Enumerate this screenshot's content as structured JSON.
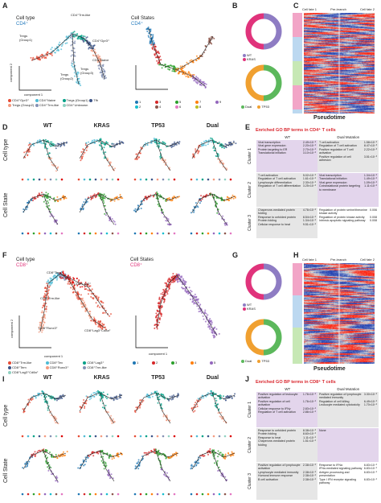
{
  "panels": {
    "A": {
      "letter": "A",
      "cell_type_label": "Cell type",
      "cd4_label": "CD4⁺",
      "cell_states_label": "Cell States",
      "cd4_label2": "CD4⁺",
      "annotations": [
        "CD4⁺Trm-like",
        "Tregs (Group1)",
        "CD4⁺Gpr3⁺",
        "CD4⁺Naive",
        "Tregs (Group2)",
        "Tregs (Group3)"
      ],
      "component1": "component 1",
      "component2": "component 2",
      "legend_type": [
        "CD4⁺Gpr3⁺",
        "CD4⁺Naive",
        "Tregs (Group1)",
        "Tfh",
        "Tregs (Group2)",
        "CD4⁺Trm-like",
        "CD4⁺Unknown"
      ],
      "legend_states": [
        "1",
        "3",
        "5",
        "7",
        "9",
        "2",
        "4",
        "6",
        "8"
      ]
    },
    "B": {
      "letter": "B",
      "legend1": [
        "WT",
        "KRAS"
      ],
      "legend2": [
        "Dual",
        "TP53"
      ]
    },
    "C": {
      "letter": "C",
      "top_labels": [
        "Cell fate 1",
        "Pre-branch",
        "Cell fate 2"
      ],
      "pseudotime": "Pseudotime"
    },
    "D": {
      "letter": "D",
      "columns": [
        "WT",
        "KRAS",
        "TP53",
        "Dual"
      ],
      "row_labels": [
        "Cell type",
        "Cell State"
      ]
    },
    "E": {
      "letter": "E",
      "title": "Enriched GO BP terms in CD4⁺ T cells",
      "col_wt": "WT",
      "col_dual": "Dual Mutation",
      "clusters": [
        {
          "name": "Cluster 1",
          "wt": [
            [
              "Viral transcription",
              "2.49×10⁻²"
            ],
            [
              "Viral gene expression",
              "2.20×10⁻²"
            ],
            [
              "Protein targeting to ER",
              "2.70×10⁻²"
            ],
            [
              "Translational initiation",
              "3.10×10⁻²"
            ]
          ],
          "dual": [
            [
              "T cell activation",
              "1.58×10⁻²"
            ],
            [
              "Regulation of T cell activation",
              "8.47×10⁻³"
            ],
            [
              "Positive regulation of T cell activation",
              "2.22×10⁻³"
            ],
            [
              "Positive regulation of cell adhesion",
              "3.51×10⁻³"
            ]
          ]
        },
        {
          "name": "Cluster 2",
          "wt": [
            [
              "T cell activation",
              "5.02×10⁻²"
            ],
            [
              "Regulation of T cell activation",
              "1.61×10⁻²"
            ],
            [
              "Lymphocyte differentiation",
              "2.30×10⁻²"
            ],
            [
              "Regulation of T cell differentiation",
              "3.25×10⁻²"
            ]
          ],
          "dual": [
            [
              "Viral transcription",
              "1.34×10⁻²"
            ],
            [
              "Translational initiation",
              "1.49×10⁻²"
            ],
            [
              "Viral gene expression",
              "1.09×10⁻²"
            ],
            [
              "Cotranslational protein targeting to membrane",
              "1.11×10⁻²"
            ]
          ]
        },
        {
          "name": "Cluster 3",
          "wt": [
            [
              "Chaperone-mediated protein folding",
              "4.76×10⁻²"
            ],
            [
              "Response to unfolded protein",
              "8.54×10⁻²"
            ],
            [
              "Protein folding",
              "1.34×10⁻²"
            ],
            [
              "Cellular response to heat",
              "9.51×10⁻²"
            ]
          ],
          "dual": [
            [
              "Regulation of protein serine/threonine kinase activity",
              "0.006"
            ],
            [
              "Regulation of protein kinase activity",
              "0.008"
            ],
            [
              "Intrinsic apoptotic signaling pathway",
              "0.008"
            ]
          ]
        }
      ]
    },
    "F": {
      "letter": "F",
      "cell_type_label": "Cell type",
      "cd8_label": "CD8⁺",
      "cell_states_label": "Cell States",
      "cd8_label2": "CD8⁺",
      "annotations": [
        "CD8⁺Tem",
        "CD8⁺Lag3⁺",
        "CD8⁺Trm-like",
        "CD8⁺Runx3⁺",
        "CD8⁺Lag3⁺Cd8a⁺"
      ],
      "component1": "component 1",
      "component2": "component 2",
      "legend_type": [
        "CD8⁺Trm-like",
        "CD8⁺Tex",
        "CD8⁺Lag3⁺",
        "CD8⁺Tem",
        "CD8⁺Runx3⁺",
        "CD8⁺Trm-like",
        "CD8⁺Lag3⁺Cd8a⁺"
      ],
      "legend_states": [
        "1",
        "2",
        "3",
        "4",
        "5"
      ]
    },
    "G": {
      "letter": "G",
      "legend1": [
        "WT",
        "KRAS"
      ],
      "legend2": [
        "Dual",
        "TP53"
      ]
    },
    "H": {
      "letter": "H",
      "top_labels": [
        "Cell fate 1",
        "Pre-branch",
        "Cell fate 2"
      ],
      "pseudotime": "Pseudotime"
    },
    "I": {
      "letter": "I",
      "columns": [
        "WT",
        "KRAS",
        "TP53",
        "Dual"
      ],
      "row_labels": [
        "Cell type",
        "Cell State"
      ]
    },
    "J": {
      "letter": "J",
      "title": "Enriched GO BP terms in CD8⁺ T cells",
      "col_wt": "WT",
      "col_dual": "Dual Mutation",
      "clusters": [
        {
          "name": "Cluster 1",
          "wt": [
            [
              "Positive regulation of leukocyte activation",
              "1.76×10⁻²"
            ],
            [
              "Positive regulation of cell activation",
              "1.76×10⁻²"
            ],
            [
              "Cellular response to IFNγ",
              "2.83×10⁻²"
            ],
            [
              "Regulation of T cell activation",
              "2.86×10⁻²"
            ]
          ],
          "dual": [
            [
              "Positive regulation of lymphocyte mediated immunity",
              "3.30×10⁻²"
            ],
            [
              "Regulation of cell killing",
              "6.49×10⁻²"
            ],
            [
              "Leukocyte mediated cytotoxicity",
              "1.70×10⁻²"
            ]
          ]
        },
        {
          "name": "Cluster 2",
          "wt": [
            [
              "Response to unfolded protein",
              "8.38×10⁻²"
            ],
            [
              "Protein folding",
              "8.60×10⁻²"
            ],
            [
              "Response to heat",
              "1.11×10⁻²"
            ],
            [
              "Chaperone-mediated protein folding",
              "1.51×10⁻²"
            ]
          ],
          "dual": [
            [
              "None",
              ""
            ]
          ]
        },
        {
          "name": "Cluster 3",
          "wt": [
            [
              "Positive regulation of lymphocyte activation",
              "2.38×10⁻²"
            ],
            [
              "Lymphocyte mediated immunity",
              "2.38×10⁻²"
            ],
            [
              "Humoral immune response",
              "2.38×10⁻²"
            ],
            [
              "B cell activation",
              "2.38×10⁻²"
            ]
          ],
          "dual": [
            [
              "Response to IFNα",
              "6.83×10⁻²"
            ],
            [
              "IFNα-mediated signaling pathway",
              "6.83×10⁻²"
            ],
            [
              "Antigen processing and presentation",
              "6.83×10⁻²"
            ],
            [
              "Type I IFN receptor signaling pathway",
              "6.83×10⁻²"
            ]
          ]
        }
      ]
    }
  },
  "colors": {
    "type_palette": [
      "#e64b35",
      "#4dbbd5",
      "#00a087",
      "#3c5488",
      "#f39b7f",
      "#8491b4",
      "#91d1c2",
      "#dc0000"
    ],
    "state_palette": [
      "#1f77b4",
      "#d62728",
      "#2ca02c",
      "#ff7f0e",
      "#9467bd",
      "#17becf",
      "#8c564b",
      "#e377c2",
      "#bcbd22"
    ],
    "cd8_states": [
      "#d62728",
      "#9467bd"
    ],
    "donut_purple": "#8e7cc3",
    "donut_pink": "#e0337b",
    "donut_green": "#5cb85c",
    "donut_orange": "#f0a030",
    "go_purple": "#e3d5ec",
    "go_gray": "#e6e6e6",
    "title_red": "#d9262d"
  }
}
